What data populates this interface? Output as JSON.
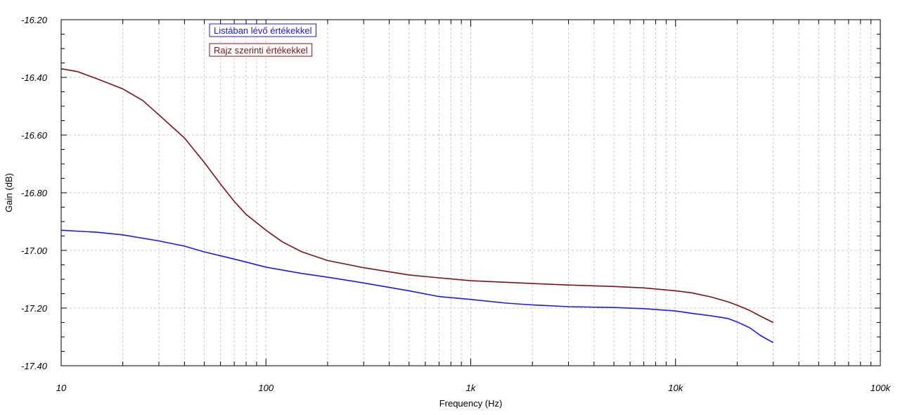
{
  "chart_data": {
    "type": "line",
    "title": "",
    "xlabel": "Frequency (Hz)",
    "ylabel": "Gain (dB)",
    "x_scale": "log",
    "xlim": [
      10,
      100000
    ],
    "ylim": [
      -17.4,
      -16.2
    ],
    "grid": true,
    "legend_position": "top-left",
    "x_ticks": [
      {
        "value": 10,
        "label": "10"
      },
      {
        "value": 100,
        "label": "100"
      },
      {
        "value": 1000,
        "label": "1k"
      },
      {
        "value": 10000,
        "label": "10k"
      },
      {
        "value": 100000,
        "label": "100k"
      }
    ],
    "y_ticks": [
      {
        "value": -16.2,
        "label": "-16.20"
      },
      {
        "value": -16.4,
        "label": "-16.40"
      },
      {
        "value": -16.6,
        "label": "-16.60"
      },
      {
        "value": -16.8,
        "label": "-16.80"
      },
      {
        "value": -17.0,
        "label": "-17.00"
      },
      {
        "value": -17.2,
        "label": "-17.20"
      },
      {
        "value": -17.4,
        "label": "-17.40"
      }
    ],
    "series": [
      {
        "name": "Listában lévő értékekkel",
        "color": "#1a1ae6",
        "points": [
          [
            10,
            -16.93
          ],
          [
            15,
            -16.937
          ],
          [
            20,
            -16.946
          ],
          [
            30,
            -16.967
          ],
          [
            40,
            -16.985
          ],
          [
            50,
            -17.005
          ],
          [
            70,
            -17.03
          ],
          [
            100,
            -17.058
          ],
          [
            150,
            -17.08
          ],
          [
            200,
            -17.093
          ],
          [
            300,
            -17.113
          ],
          [
            500,
            -17.14
          ],
          [
            700,
            -17.16
          ],
          [
            1000,
            -17.17
          ],
          [
            1500,
            -17.183
          ],
          [
            2000,
            -17.189
          ],
          [
            3000,
            -17.195
          ],
          [
            5000,
            -17.198
          ],
          [
            7000,
            -17.202
          ],
          [
            10000,
            -17.21
          ],
          [
            12000,
            -17.218
          ],
          [
            15000,
            -17.227
          ],
          [
            18000,
            -17.236
          ],
          [
            20000,
            -17.248
          ],
          [
            23000,
            -17.268
          ],
          [
            26000,
            -17.295
          ],
          [
            30000,
            -17.32
          ]
        ]
      },
      {
        "name": "Rajz szerinti értékekkel",
        "color": "#7a1414",
        "points": [
          [
            10,
            -16.37
          ],
          [
            12,
            -16.38
          ],
          [
            15,
            -16.405
          ],
          [
            20,
            -16.44
          ],
          [
            25,
            -16.48
          ],
          [
            30,
            -16.53
          ],
          [
            40,
            -16.61
          ],
          [
            50,
            -16.695
          ],
          [
            60,
            -16.77
          ],
          [
            70,
            -16.83
          ],
          [
            80,
            -16.875
          ],
          [
            100,
            -16.93
          ],
          [
            120,
            -16.97
          ],
          [
            150,
            -17.005
          ],
          [
            200,
            -17.035
          ],
          [
            300,
            -17.06
          ],
          [
            500,
            -17.085
          ],
          [
            700,
            -17.095
          ],
          [
            1000,
            -17.105
          ],
          [
            2000,
            -17.115
          ],
          [
            3000,
            -17.12
          ],
          [
            5000,
            -17.125
          ],
          [
            7000,
            -17.13
          ],
          [
            10000,
            -17.14
          ],
          [
            12000,
            -17.147
          ],
          [
            15000,
            -17.162
          ],
          [
            18000,
            -17.178
          ],
          [
            20000,
            -17.19
          ],
          [
            23000,
            -17.208
          ],
          [
            26000,
            -17.228
          ],
          [
            30000,
            -17.25
          ]
        ]
      }
    ]
  }
}
